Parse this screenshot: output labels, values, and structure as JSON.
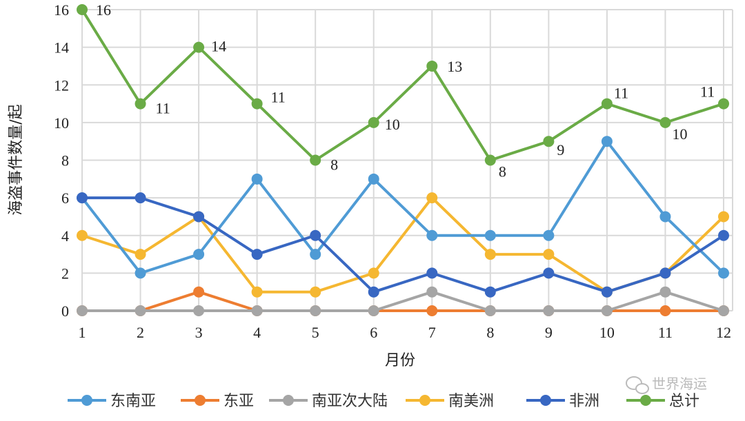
{
  "chart_data": {
    "type": "line",
    "title": "",
    "xlabel": "月份",
    "ylabel": "海盗事件数量/起",
    "x": [
      1,
      2,
      3,
      4,
      5,
      6,
      7,
      8,
      9,
      10,
      11,
      12
    ],
    "ylim": [
      0,
      16
    ],
    "yticks": [
      0,
      2,
      4,
      6,
      8,
      10,
      12,
      14,
      16
    ],
    "grid": true,
    "legend_position": "bottom",
    "series": [
      {
        "name": "东南亚",
        "color": "#4f9bd5",
        "values": [
          6,
          2,
          3,
          7,
          3,
          7,
          4,
          4,
          4,
          9,
          5,
          2
        ]
      },
      {
        "name": "东亚",
        "color": "#ed7d31",
        "values": [
          0,
          0,
          1,
          0,
          0,
          0,
          0,
          0,
          0,
          0,
          0,
          0
        ]
      },
      {
        "name": "南亚次大陆",
        "color": "#a5a5a5",
        "values": [
          0,
          0,
          0,
          0,
          0,
          0,
          1,
          0,
          0,
          0,
          1,
          0
        ]
      },
      {
        "name": "南美洲",
        "color": "#f5b731",
        "values": [
          4,
          3,
          5,
          1,
          1,
          2,
          6,
          3,
          3,
          1,
          2,
          5
        ]
      },
      {
        "name": "非洲",
        "color": "#3867c2",
        "values": [
          6,
          6,
          5,
          3,
          4,
          1,
          2,
          1,
          2,
          1,
          2,
          4
        ]
      },
      {
        "name": "总计",
        "color": "#6aab46",
        "values": [
          16,
          11,
          14,
          11,
          8,
          10,
          13,
          8,
          9,
          11,
          10,
          11
        ],
        "data_labels": true
      }
    ]
  },
  "watermark": {
    "text": "世界海运",
    "icon": "wechat-icon"
  }
}
